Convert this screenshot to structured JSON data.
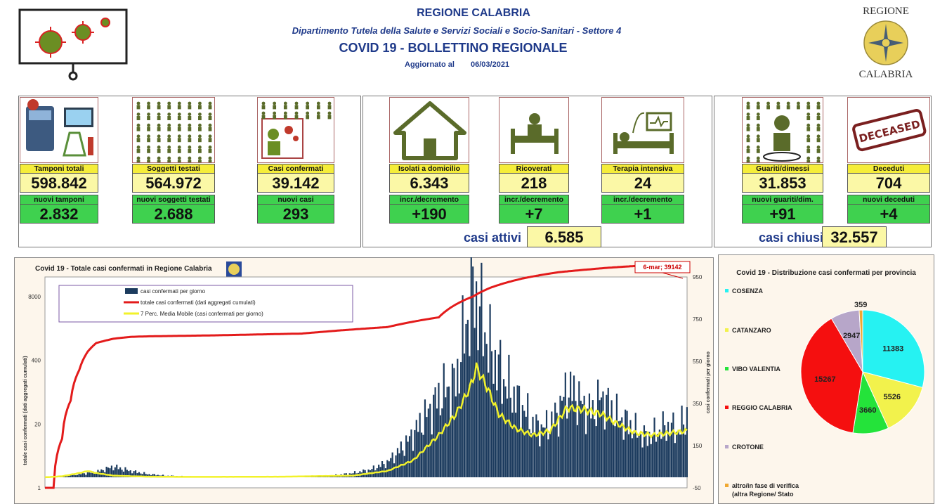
{
  "header": {
    "region": "REGIONE CALABRIA",
    "department": "Dipartimento Tutela della Salute e Servizi Sociali e Socio-Sanitari - Settore 4",
    "bulletin": "COVID 19 - BOLLETTINO REGIONALE",
    "updated_label": "Aggiornato al",
    "updated_date": "06/03/2021",
    "logo_top": "REGIONE",
    "logo_bottom": "CALABRIA"
  },
  "stats": {
    "tamponi": {
      "label": "Tamponi totali",
      "value": "598.842",
      "new_label": "nuovi tamponi",
      "new_value": "2.832"
    },
    "soggetti": {
      "label": "Soggetti testati",
      "value": "564.972",
      "new_label": "nuovi soggetti testati",
      "new_value": "2.688"
    },
    "casi": {
      "label": "Casi confermati",
      "value": "39.142",
      "new_label": "nuovi casi",
      "new_value": "293"
    },
    "isolati": {
      "label": "Isolati a domicilio",
      "value": "6.343",
      "new_label": "incr./decremento",
      "new_value": "+190"
    },
    "ricoverati": {
      "label": "Ricoverati",
      "value": "218",
      "new_label": "incr./decremento",
      "new_value": "+7"
    },
    "terapia": {
      "label": "Terapia intensiva",
      "value": "24",
      "new_label": "incr./decremento",
      "new_value": "+1"
    },
    "guariti": {
      "label": "Guariti/dimessi",
      "value": "31.853",
      "new_label": "nuovi guariti/dim.",
      "new_value": "+91"
    },
    "deceduti": {
      "label": "Deceduti",
      "value": "704",
      "new_label": "nuovi deceduti",
      "new_value": "+4"
    },
    "casi_attivi_label": "casi attivi",
    "casi_attivi_value": "6.585",
    "casi_chiusi_label": "casi chiusi",
    "casi_chiusi_value": "32.557",
    "deceased_stamp": "DECEASED"
  },
  "colors": {
    "cumulative": "#e31b1b",
    "daily_bars": "#1c3b5e",
    "moving_avg": "#f2f22a",
    "label_yellow": "#f5ed3a",
    "label_green": "#3fd14f"
  },
  "chart_data": [
    {
      "type": "bar",
      "title": "Covid 19 - Totale casi confermati in Regione Calabria",
      "ylabel": "totale casi confermati (dati aggregati cumulati)",
      "y2label": "casi confermati per giorno",
      "y_ticks": [
        "1",
        "20",
        "400",
        "8000"
      ],
      "y_scale": "log",
      "y2_ticks": [
        "-50",
        "150",
        "350",
        "550",
        "750",
        "950"
      ],
      "y2lim": [
        -50,
        950
      ],
      "annotation": "6-mar; 39142",
      "legend": [
        "casi confermati per giorno",
        "totale casi confermati (dati aggregati cumulati)",
        "7 Perc. Media Mobile (casi confermati per giorno)"
      ],
      "series": [
        {
          "name": "casi confermati per giorno",
          "kind": "bar",
          "x": [
            0,
            10,
            20,
            30,
            40,
            50,
            60,
            70,
            80,
            90,
            100,
            110,
            120,
            130,
            140,
            150,
            160,
            170,
            180,
            190,
            200,
            210,
            220,
            230,
            240,
            250,
            260,
            270,
            280,
            285,
            290,
            295,
            300,
            305,
            310,
            315,
            320,
            325,
            330,
            335,
            340,
            345,
            350,
            355,
            360,
            365,
            370,
            375
          ],
          "values": [
            0,
            5,
            15,
            25,
            50,
            30,
            15,
            8,
            5,
            3,
            2,
            2,
            2,
            3,
            2,
            3,
            5,
            10,
            20,
            35,
            70,
            150,
            260,
            380,
            450,
            900,
            600,
            430,
            320,
            250,
            230,
            250,
            310,
            420,
            390,
            330,
            310,
            380,
            330,
            280,
            260,
            220,
            190,
            200,
            230,
            240,
            220,
            293
          ]
        },
        {
          "name": "totale casi confermati (dati aggregati cumulati)",
          "kind": "line",
          "x": [
            0,
            5,
            10,
            15,
            20,
            25,
            30,
            40,
            50,
            60,
            80,
            100,
            150,
            200,
            230,
            250,
            260,
            280,
            300,
            330,
            360,
            375
          ],
          "values": [
            1,
            1,
            10,
            60,
            250,
            600,
            900,
            1100,
            1200,
            1230,
            1260,
            1290,
            1400,
            1900,
            3000,
            8000,
            12000,
            19000,
            25000,
            31000,
            36000,
            39142
          ]
        },
        {
          "name": "7 Perc. Media Mobile (casi confermati per giorno)",
          "kind": "line",
          "x": [
            0,
            10,
            20,
            25,
            30,
            40,
            50,
            60,
            80,
            100,
            140,
            180,
            200,
            215,
            230,
            240,
            248,
            252,
            258,
            265,
            275,
            285,
            295,
            305,
            315,
            325,
            335,
            345,
            355,
            365,
            375
          ],
          "values": [
            0,
            5,
            20,
            30,
            20,
            8,
            5,
            3,
            2,
            2,
            3,
            8,
            30,
            80,
            200,
            300,
            420,
            520,
            430,
            300,
            230,
            200,
            220,
            330,
            320,
            300,
            250,
            210,
            200,
            210,
            220
          ]
        }
      ]
    },
    {
      "type": "pie",
      "title": "Covid 19 - Distribuzione casi confermati per provincia",
      "legend_position": "left",
      "categories": [
        "COSENZA",
        "CATANZARO",
        "VIBO VALENTIA",
        "REGGIO CALABRIA",
        "CROTONE",
        "altro/in fase di verifica (altra Regione/ Stato"
      ],
      "values": [
        11383,
        5526,
        3660,
        15267,
        2947,
        359
      ],
      "colors": [
        "#26f2f2",
        "#f2f24c",
        "#24e33a",
        "#f50f0f",
        "#b7a6c9",
        "#f0a830"
      ]
    }
  ]
}
